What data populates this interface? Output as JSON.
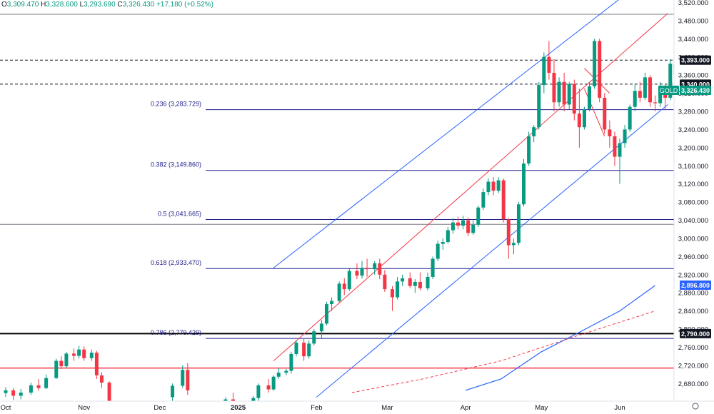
{
  "header": {
    "open_label": "O",
    "open": "3,309.470",
    "high_label": "H",
    "high": "3,328.600",
    "low_label": "L",
    "low": "3,293.690",
    "close_label": "C",
    "close": "3,326.430",
    "change": "+17.180 (+0.52%)"
  },
  "colors": {
    "up": "#089981",
    "down": "#f23645",
    "channel": "#2962ff",
    "fib": "#1f1d8a",
    "dashed": "#131722",
    "red_line": "#f23645",
    "grid_line": "#787b86",
    "ma_blue": "#2962ff",
    "ma_red": "#f23645"
  },
  "chart_data": {
    "type": "candlestick",
    "symbol": "GOLD",
    "ylim": [
      2660,
      3520
    ],
    "y_ticks": [
      "3,520.000",
      "3,480.000",
      "3,440.000",
      "3,400.000",
      "3,360.000",
      "3,320.000",
      "3,280.000",
      "3,240.000",
      "3,200.000",
      "3,160.000",
      "3,120.000",
      "3,080.000",
      "3,040.000",
      "3,000.000",
      "2,960.000",
      "2,920.000",
      "2,880.000",
      "2,840.000",
      "2,800.000",
      "2,760.000",
      "2,720.000",
      "2,680.000"
    ],
    "x_ticks": [
      {
        "label": "Oct",
        "date": "2024-10-01"
      },
      {
        "label": "Nov",
        "date": "2024-11-01"
      },
      {
        "label": "Dec",
        "date": "2024-12-01"
      },
      {
        "label": "2025",
        "date": "2025-01-01"
      },
      {
        "label": "Feb",
        "date": "2025-02-01"
      },
      {
        "label": "Mar",
        "date": "2025-03-01"
      },
      {
        "label": "Apr",
        "date": "2025-04-01"
      },
      {
        "label": "May",
        "date": "2025-05-01"
      },
      {
        "label": "Jun",
        "date": "2025-06-01"
      }
    ],
    "price_labels": [
      {
        "text": "3,393.000",
        "value": 3393,
        "style": "dark"
      },
      {
        "text": "3,340.000",
        "value": 3340,
        "style": "dark"
      },
      {
        "text": "3,326.430",
        "value": 3326.43,
        "style": "green",
        "tag": "GOLD"
      },
      {
        "text": "2,896.800",
        "value": 2896.8,
        "style": "blue"
      },
      {
        "text": "2,790.000",
        "value": 2790,
        "style": "dark"
      }
    ],
    "fib_levels": [
      {
        "label": "0.236 (3,283.729)",
        "value": 3283.729
      },
      {
        "label": "0.382 (3,149.860)",
        "value": 3149.86
      },
      {
        "label": "0.5 (3,041.665)",
        "value": 3041.665
      },
      {
        "label": "0.618 (2,933.470)",
        "value": 2933.47
      },
      {
        "label": "0.786 (2,779.429)",
        "value": 2779.429
      }
    ],
    "horizontal_lines": [
      {
        "value": 3494,
        "style": "gray"
      },
      {
        "value": 3393,
        "style": "dashed"
      },
      {
        "value": 3340,
        "style": "dashed"
      },
      {
        "value": 3031,
        "style": "gray"
      },
      {
        "value": 2790,
        "style": "black"
      },
      {
        "value": 2714,
        "style": "red"
      }
    ],
    "trendlines": [
      {
        "name": "channel-upper",
        "style": "channel",
        "from": [
          "2025-01-15",
          2935
        ],
        "to": [
          "2025-06-01",
          3528
        ]
      },
      {
        "name": "channel-lower",
        "style": "channel",
        "from": [
          "2025-02-01",
          2650
        ],
        "to": [
          "2025-06-20",
          3295
        ]
      },
      {
        "name": "channel-mid",
        "style": "red",
        "from": [
          "2025-01-15",
          2730
        ],
        "to": [
          "2025-06-20",
          3496
        ]
      },
      {
        "name": "wedge-upper",
        "style": "red",
        "from": [
          "2025-05-18",
          3375
        ],
        "to": [
          "2025-05-28",
          3320
        ]
      },
      {
        "name": "wedge-lower",
        "style": "red",
        "from": [
          "2025-05-18",
          3330
        ],
        "to": [
          "2025-05-26",
          3225
        ]
      }
    ],
    "moving_averages": [
      {
        "style": "blue",
        "points": [
          [
            "2025-04-01",
            2665
          ],
          [
            "2025-04-15",
            2690
          ],
          [
            "2025-05-01",
            2750
          ],
          [
            "2025-05-15",
            2790
          ],
          [
            "2025-06-01",
            2840
          ],
          [
            "2025-06-15",
            2896
          ]
        ]
      },
      {
        "style": "red_dashed",
        "points": [
          [
            "2025-02-15",
            2660
          ],
          [
            "2025-03-15",
            2690
          ],
          [
            "2025-04-15",
            2730
          ],
          [
            "2025-05-15",
            2785
          ],
          [
            "2025-06-15",
            2840
          ]
        ]
      }
    ],
    "candles": [
      [
        "2024-10-01",
        2659,
        2672,
        2650,
        2665
      ],
      [
        "2024-10-04",
        2665,
        2670,
        2644,
        2653
      ],
      [
        "2024-10-07",
        2653,
        2668,
        2645,
        2660
      ],
      [
        "2024-10-11",
        2660,
        2682,
        2655,
        2676
      ],
      [
        "2024-10-14",
        2676,
        2690,
        2664,
        2670
      ],
      [
        "2024-10-17",
        2670,
        2700,
        2668,
        2692
      ],
      [
        "2024-10-21",
        2692,
        2735,
        2690,
        2730
      ],
      [
        "2024-10-23",
        2730,
        2740,
        2712,
        2718
      ],
      [
        "2024-10-25",
        2718,
        2750,
        2715,
        2746
      ],
      [
        "2024-10-28",
        2746,
        2757,
        2730,
        2741
      ],
      [
        "2024-10-30",
        2741,
        2763,
        2735,
        2755
      ],
      [
        "2024-11-01",
        2755,
        2762,
        2730,
        2736
      ],
      [
        "2024-11-04",
        2736,
        2755,
        2730,
        2748
      ],
      [
        "2024-11-06",
        2748,
        2752,
        2690,
        2698
      ],
      [
        "2024-11-08",
        2698,
        2705,
        2670,
        2682
      ],
      [
        "2024-11-11",
        2682,
        2685,
        2630,
        2640
      ],
      [
        "2024-12-06",
        2650,
        2680,
        2640,
        2675
      ],
      [
        "2024-12-10",
        2675,
        2720,
        2670,
        2710
      ],
      [
        "2024-12-12",
        2710,
        2725,
        2655,
        2665
      ],
      [
        "2024-12-27",
        2635,
        2650,
        2625,
        2645
      ],
      [
        "2024-12-30",
        2645,
        2660,
        2620,
        2630
      ],
      [
        "2025-01-07",
        2630,
        2652,
        2625,
        2648
      ],
      [
        "2025-01-09",
        2648,
        2680,
        2642,
        2676
      ],
      [
        "2025-01-13",
        2676,
        2690,
        2660,
        2667
      ],
      [
        "2025-01-15",
        2667,
        2698,
        2664,
        2695
      ],
      [
        "2025-01-17",
        2695,
        2715,
        2690,
        2704
      ],
      [
        "2025-01-20",
        2704,
        2712,
        2698,
        2708
      ],
      [
        "2025-01-22",
        2708,
        2750,
        2702,
        2745
      ],
      [
        "2025-01-24",
        2745,
        2775,
        2740,
        2770
      ],
      [
        "2025-01-27",
        2770,
        2778,
        2730,
        2740
      ],
      [
        "2025-01-29",
        2740,
        2775,
        2735,
        2768
      ],
      [
        "2025-01-31",
        2768,
        2800,
        2764,
        2795
      ],
      [
        "2025-02-03",
        2795,
        2820,
        2780,
        2812
      ],
      [
        "2025-02-05",
        2812,
        2860,
        2808,
        2855
      ],
      [
        "2025-02-07",
        2855,
        2870,
        2840,
        2862
      ],
      [
        "2025-02-10",
        2862,
        2905,
        2858,
        2900
      ],
      [
        "2025-02-12",
        2900,
        2912,
        2875,
        2888
      ],
      [
        "2025-02-14",
        2888,
        2935,
        2884,
        2928
      ],
      [
        "2025-02-17",
        2928,
        2945,
        2910,
        2918
      ],
      [
        "2025-02-19",
        2918,
        2950,
        2912,
        2935
      ],
      [
        "2025-02-21",
        2935,
        2955,
        2915,
        2932
      ],
      [
        "2025-02-24",
        2932,
        2950,
        2920,
        2945
      ],
      [
        "2025-02-26",
        2945,
        2955,
        2910,
        2920
      ],
      [
        "2025-02-28",
        2920,
        2930,
        2882,
        2888
      ],
      [
        "2025-03-03",
        2888,
        2895,
        2840,
        2870
      ],
      [
        "2025-03-05",
        2870,
        2915,
        2865,
        2905
      ],
      [
        "2025-03-07",
        2905,
        2920,
        2895,
        2912
      ],
      [
        "2025-03-10",
        2912,
        2925,
        2890,
        2895
      ],
      [
        "2025-03-12",
        2895,
        2910,
        2880,
        2904
      ],
      [
        "2025-03-14",
        2904,
        2925,
        2885,
        2890
      ],
      [
        "2025-03-17",
        2890,
        2925,
        2885,
        2915
      ],
      [
        "2025-03-19",
        2915,
        2960,
        2910,
        2955
      ],
      [
        "2025-03-21",
        2955,
        2995,
        2950,
        2988
      ],
      [
        "2025-03-23",
        2988,
        3000,
        2975,
        2992
      ],
      [
        "2025-03-25",
        2992,
        3025,
        2988,
        3018
      ],
      [
        "2025-03-27",
        3018,
        3045,
        3010,
        3035
      ],
      [
        "2025-03-29",
        3035,
        3048,
        3020,
        3028
      ],
      [
        "2025-03-31",
        3028,
        3050,
        3020,
        3040
      ],
      [
        "2025-04-02",
        3040,
        3046,
        3005,
        3012
      ],
      [
        "2025-04-04",
        3012,
        3040,
        3008,
        3030
      ],
      [
        "2025-04-06",
        3030,
        3072,
        3025,
        3068
      ],
      [
        "2025-04-08",
        3068,
        3110,
        3062,
        3102
      ],
      [
        "2025-04-10",
        3102,
        3132,
        3095,
        3125
      ],
      [
        "2025-04-12",
        3125,
        3135,
        3095,
        3105
      ],
      [
        "2025-04-14",
        3105,
        3135,
        3100,
        3128
      ],
      [
        "2025-04-16",
        3128,
        3132,
        3035,
        3042
      ],
      [
        "2025-04-18",
        3042,
        3045,
        2955,
        2985
      ],
      [
        "2025-04-20",
        2985,
        3000,
        2965,
        2990
      ],
      [
        "2025-04-22",
        2990,
        3080,
        2985,
        3075
      ],
      [
        "2025-04-24",
        3075,
        3175,
        3070,
        3165
      ],
      [
        "2025-04-26",
        3165,
        3235,
        3160,
        3225
      ],
      [
        "2025-04-28",
        3225,
        3250,
        3212,
        3245
      ],
      [
        "2025-04-30",
        3245,
        3345,
        3240,
        3338
      ],
      [
        "2025-05-02",
        3338,
        3410,
        3320,
        3400
      ],
      [
        "2025-05-04",
        3400,
        3435,
        3350,
        3365
      ],
      [
        "2025-05-06",
        3365,
        3395,
        3280,
        3300
      ],
      [
        "2025-05-08",
        3300,
        3355,
        3290,
        3345
      ],
      [
        "2025-05-10",
        3345,
        3365,
        3280,
        3295
      ],
      [
        "2025-05-12",
        3295,
        3345,
        3285,
        3340
      ],
      [
        "2025-05-14",
        3340,
        3350,
        3260,
        3275
      ],
      [
        "2025-05-16",
        3275,
        3330,
        3200,
        3245
      ],
      [
        "2025-05-18",
        3245,
        3290,
        3240,
        3285
      ],
      [
        "2025-05-20",
        3285,
        3345,
        3280,
        3335
      ],
      [
        "2025-05-22",
        3335,
        3440,
        3330,
        3435
      ],
      [
        "2025-05-24",
        3435,
        3440,
        3300,
        3310
      ],
      [
        "2025-05-26",
        3310,
        3320,
        3230,
        3240
      ],
      [
        "2025-05-28",
        3240,
        3260,
        3200,
        3225
      ],
      [
        "2025-05-30",
        3225,
        3235,
        3160,
        3180
      ],
      [
        "2025-06-01",
        3180,
        3220,
        3120,
        3210
      ],
      [
        "2025-06-03",
        3210,
        3250,
        3200,
        3240
      ],
      [
        "2025-06-05",
        3240,
        3295,
        3235,
        3290
      ],
      [
        "2025-06-07",
        3290,
        3340,
        3280,
        3325
      ],
      [
        "2025-06-09",
        3325,
        3345,
        3300,
        3310
      ],
      [
        "2025-06-11",
        3310,
        3365,
        3305,
        3355
      ],
      [
        "2025-06-13",
        3355,
        3360,
        3290,
        3300
      ],
      [
        "2025-06-15",
        3300,
        3315,
        3280,
        3298
      ],
      [
        "2025-06-17",
        3298,
        3345,
        3290,
        3335
      ],
      [
        "2025-06-19",
        3335,
        3340,
        3285,
        3310
      ],
      [
        "2025-06-21",
        3310,
        3395,
        3305,
        3385
      ],
      [
        "2025-06-23",
        3385,
        3395,
        3350,
        3360
      ],
      [
        "2025-06-25",
        3360,
        3395,
        3340,
        3375
      ],
      [
        "2025-06-27",
        3375,
        3385,
        3320,
        3335
      ],
      [
        "2025-06-29",
        3335,
        3345,
        3295,
        3309
      ],
      [
        "2025-07-01",
        3309,
        3328,
        3293,
        3326
      ]
    ]
  }
}
